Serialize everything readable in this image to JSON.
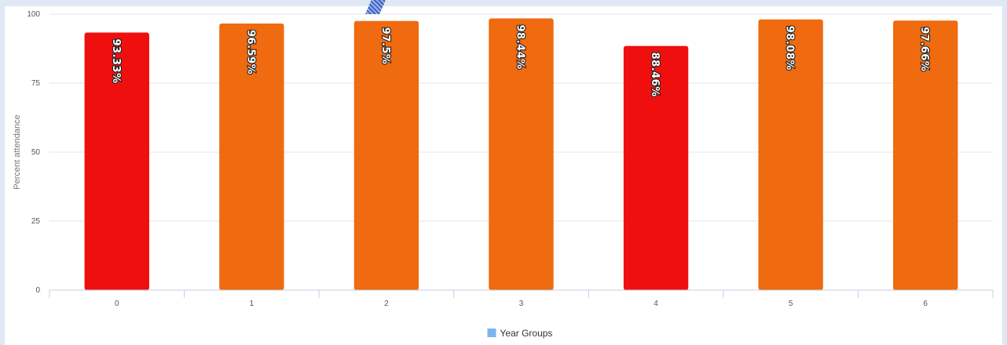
{
  "chart_data": {
    "type": "bar",
    "categories": [
      "0",
      "1",
      "2",
      "3",
      "4",
      "5",
      "6"
    ],
    "series": [
      {
        "name": "Year Groups",
        "values": [
          93.33,
          96.59,
          97.5,
          98.44,
          88.46,
          98.08,
          97.66
        ],
        "data_labels": [
          "93.33%",
          "96.59%",
          "97.5%",
          "98.44%",
          "88.46%",
          "98.08%",
          "97.66%"
        ],
        "colors": [
          "#ef0f0f",
          "#f06a10",
          "#f06a10",
          "#f06a10",
          "#ef0f0f",
          "#f06a10",
          "#f06a10"
        ]
      }
    ],
    "ylabel": "Percent attendance",
    "ylim": [
      0,
      100
    ],
    "yticks": [
      "0",
      "25",
      "50",
      "75",
      "100"
    ],
    "grid": true,
    "legend_position": "bottom",
    "legend_color": "#7cb5ec"
  }
}
